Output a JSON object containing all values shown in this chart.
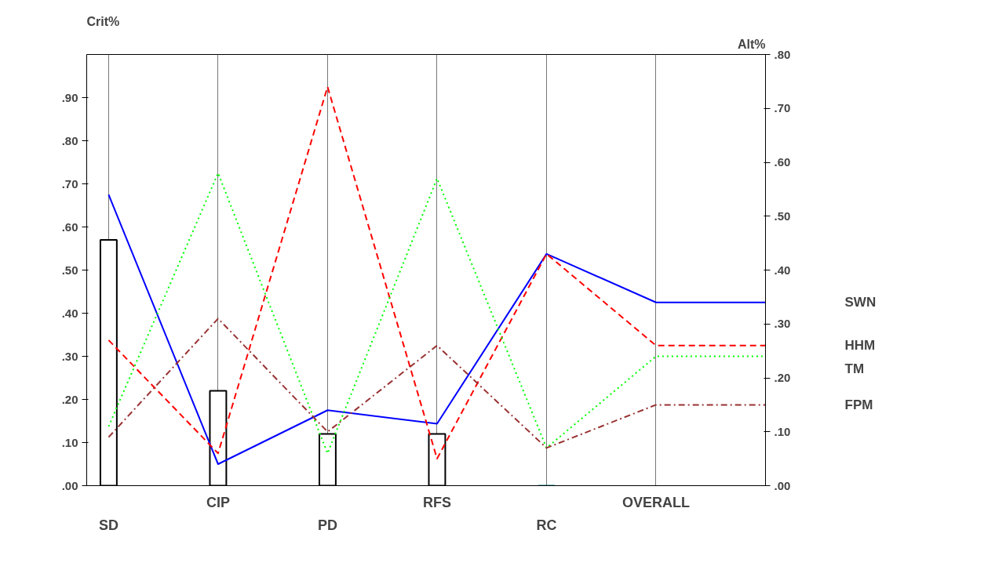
{
  "chart_data": {
    "type": "line",
    "ylabel": "Crit%",
    "y2label": "Alt%",
    "categories": [
      "SD",
      "CIP",
      "PD",
      "RFS",
      "RC",
      "OVERALL",
      null
    ],
    "series": [
      {
        "type": "bar",
        "colors": [
          "#000000",
          "#000000",
          "#000000",
          "#000000",
          "#008080",
          null,
          null
        ],
        "values": [
          0.57,
          0.22,
          0.12,
          0.12,
          0.0,
          null,
          null
        ]
      },
      {
        "name": "SWN",
        "color": "#0000ff",
        "axis": "y2",
        "line_style": "solid",
        "values": [
          0.54,
          0.04,
          0.14,
          0.115,
          0.43,
          0.34,
          0.34
        ]
      },
      {
        "name": "HHM",
        "color": "#ff0000",
        "axis": "y2",
        "line_style": "dashed",
        "values": [
          0.27,
          0.06,
          0.74,
          0.05,
          0.43,
          0.26,
          0.26
        ]
      },
      {
        "name": "TM",
        "color": "#00ff00",
        "axis": "y2",
        "line_style": "dotted",
        "values": [
          0.11,
          0.58,
          0.06,
          0.57,
          0.07,
          0.24,
          0.24
        ]
      },
      {
        "name": "FPM",
        "color": "#993333",
        "axis": "y2",
        "line_style": "dashdot",
        "values": [
          0.09,
          0.31,
          0.1,
          0.26,
          0.07,
          0.15,
          0.15
        ]
      }
    ],
    "ylim": [
      0,
      1.0
    ],
    "yticks": [
      {
        "value": 0,
        "label": ".00"
      },
      {
        "value": 0.1,
        "label": ".10"
      },
      {
        "value": 0.2,
        "label": ".20"
      },
      {
        "value": 0.3,
        "label": ".30"
      },
      {
        "value": 0.4,
        "label": ".40"
      },
      {
        "value": 0.5,
        "label": ".50"
      },
      {
        "value": 0.6,
        "label": ".60"
      },
      {
        "value": 0.7,
        "label": ".70"
      },
      {
        "value": 0.8,
        "label": ".80"
      },
      {
        "value": 0.9,
        "label": ".90"
      }
    ],
    "y2lim": [
      0,
      0.8
    ],
    "y2ticks": [
      {
        "value": 0,
        "label": ".00"
      },
      {
        "value": 0.1,
        "label": ".10"
      },
      {
        "value": 0.2,
        "label": ".20"
      },
      {
        "value": 0.3,
        "label": ".30"
      },
      {
        "value": 0.4,
        "label": ".40"
      },
      {
        "value": 0.5,
        "label": ".50"
      },
      {
        "value": 0.6,
        "label": ".60"
      },
      {
        "value": 0.7,
        "label": ".70"
      },
      {
        "value": 0.8,
        "label": ".80"
      }
    ],
    "grid": "x"
  }
}
